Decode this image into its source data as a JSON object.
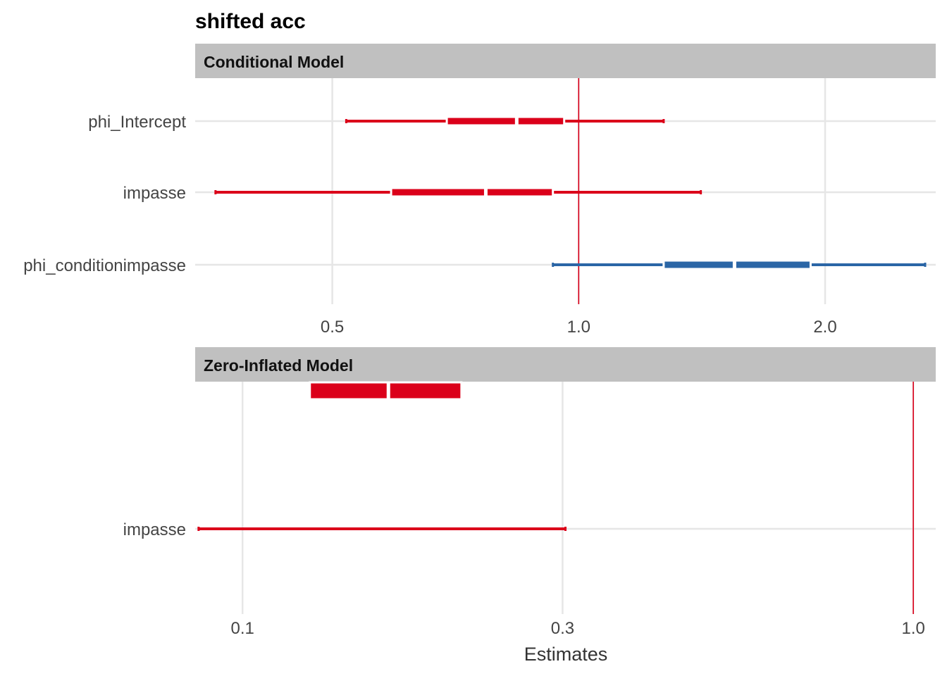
{
  "chart_data": {
    "type": "forest",
    "title": "shifted acc",
    "xlabel": "Estimates",
    "colors": {
      "negative": "#db001a",
      "positive": "#2b66a6",
      "reference_line": "#db001a",
      "strip_bg": "#c0c0c0",
      "grid": "#e6e6e6"
    },
    "panels": [
      {
        "strip": "Conditional Model",
        "x_scale": "log",
        "xlim": [
          0.34,
          2.73
        ],
        "x_ticks": [
          "0.5",
          "1.0",
          "2.0"
        ],
        "x_tick_values": [
          0.5,
          1.0,
          2.0
        ],
        "reference": 1.0,
        "terms": [
          "phi_Intercept",
          "impasse",
          "phi_conditionimpasse"
        ],
        "estimates": [
          {
            "term": "phi_Intercept",
            "estimate": 0.84,
            "inner": [
              0.69,
              0.96
            ],
            "outer": [
              0.52,
              1.27
            ],
            "direction": "negative"
          },
          {
            "term": "impasse",
            "estimate": 0.77,
            "inner": [
              0.59,
              0.93
            ],
            "outer": [
              0.36,
              1.41
            ],
            "direction": "negative"
          },
          {
            "term": "phi_conditionimpasse",
            "estimate": 1.55,
            "inner": [
              1.27,
              1.92
            ],
            "outer": [
              0.93,
              2.65
            ],
            "direction": "positive"
          }
        ]
      },
      {
        "strip": "Zero-Inflated Model",
        "x_scale": "log",
        "xlim": [
          0.085,
          1.08
        ],
        "x_ticks": [
          "0.1",
          "0.3",
          "1.0"
        ],
        "x_tick_values": [
          0.1,
          0.3,
          1.0
        ],
        "reference": 1.0,
        "terms": [
          "impasse"
        ],
        "estimates": [
          {
            "term": "impasse",
            "estimate": 0.165,
            "inner": [
              0.126,
              0.212
            ],
            "outer": [
              0.086,
              0.303
            ],
            "direction": "negative"
          }
        ]
      }
    ]
  }
}
